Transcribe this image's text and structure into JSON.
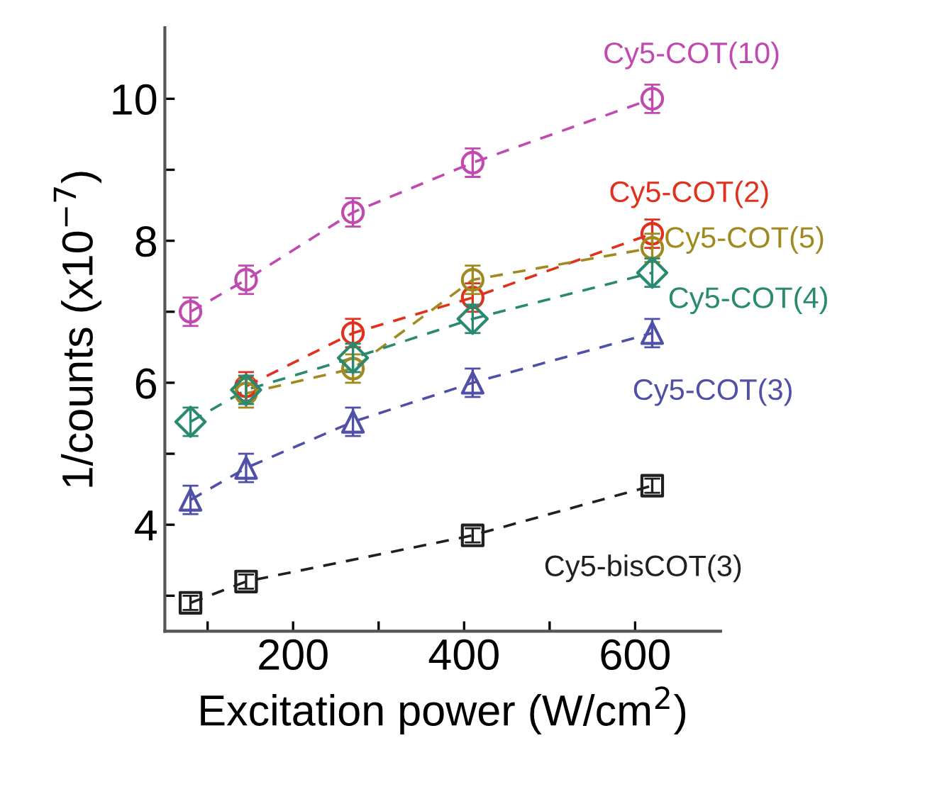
{
  "chart_data": {
    "type": "line",
    "xlabel": "Excitation power (W/cm$^{2}$)",
    "ylabel": "1/counts (x10$^{−7}$)",
    "x": [
      80,
      145,
      270,
      410,
      620
    ],
    "series": [
      {
        "name": "Cy5-COT(10)",
        "color": "#c04ab0",
        "marker": "circle",
        "values": [
          7.0,
          7.45,
          8.4,
          9.1,
          10.0
        ],
        "errors": [
          0.2,
          0.2,
          0.2,
          0.2,
          0.2
        ]
      },
      {
        "name": "Cy5-COT(2)",
        "color": "#e0301e",
        "marker": "circle",
        "x": [
          145,
          270,
          410,
          620
        ],
        "values": [
          5.95,
          6.7,
          7.2,
          8.1
        ],
        "errors": [
          0.2,
          0.2,
          0.2,
          0.2
        ]
      },
      {
        "name": "Cy5-COT(5)",
        "color": "#a08a20",
        "marker": "circle",
        "x": [
          145,
          270,
          410,
          620
        ],
        "values": [
          5.85,
          6.2,
          7.45,
          7.9
        ],
        "errors": [
          0.2,
          0.2,
          0.2,
          0.2
        ]
      },
      {
        "name": "Cy5-COT(4)",
        "color": "#2a8a70",
        "marker": "diamond",
        "values": [
          5.45,
          5.9,
          6.35,
          6.9,
          7.55
        ],
        "errors": [
          0.2,
          0.2,
          0.2,
          0.2,
          0.2
        ]
      },
      {
        "name": "Cy5-COT(3)",
        "color": "#5050a8",
        "marker": "triangle",
        "values": [
          4.35,
          4.8,
          5.45,
          6.0,
          6.7
        ],
        "errors": [
          0.2,
          0.2,
          0.2,
          0.2,
          0.2
        ]
      },
      {
        "name": "Cy5-bisCOT(3)",
        "color": "#202020",
        "marker": "square",
        "x": [
          80,
          145,
          410,
          620
        ],
        "values": [
          2.9,
          3.2,
          3.85,
          4.55
        ],
        "errors": [
          0.1,
          0.1,
          0.1,
          0.1
        ]
      }
    ],
    "line_style": "dashed",
    "xlim": [
      50,
      700
    ],
    "xticks": [
      {
        "value": 100,
        "label": null
      },
      200,
      {
        "value": 300,
        "label": null
      },
      400,
      {
        "value": 500,
        "label": null
      },
      600
    ],
    "ylim": [
      2.5,
      11
    ],
    "yticks": [
      {
        "value": 3,
        "label": null
      },
      4,
      {
        "value": 5,
        "label": null
      },
      6,
      {
        "value": 7,
        "label": null
      },
      8,
      {
        "value": 9,
        "label": null
      },
      10
    ],
    "grid": false,
    "legend": false
  }
}
